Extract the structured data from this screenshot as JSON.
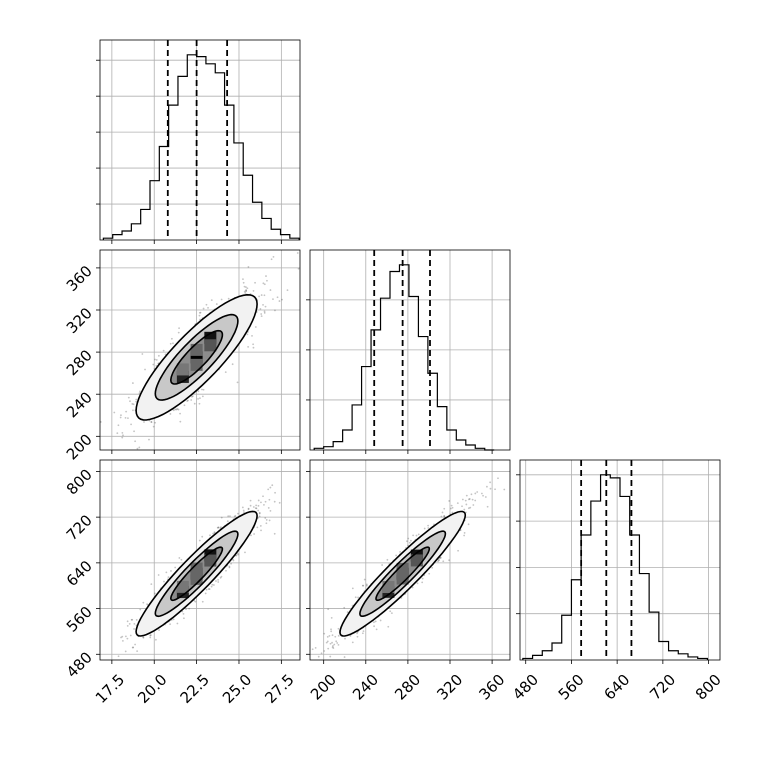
{
  "chart_data": {
    "type": "corner",
    "grid": true,
    "ticks": {
      "p1": [
        "17.5",
        "20.0",
        "22.5",
        "25.0",
        "27.5"
      ],
      "p2": [
        "200",
        "240",
        "280",
        "320",
        "360"
      ],
      "p3": [
        "480",
        "560",
        "640",
        "720",
        "800"
      ]
    },
    "parameters": [
      {
        "id": "p1",
        "range": [
          16.8,
          28.6
        ],
        "quantiles": [
          20.8,
          22.5,
          24.3
        ]
      },
      {
        "id": "p2",
        "range": [
          187,
          377
        ],
        "quantiles": [
          248,
          275,
          301
        ]
      },
      {
        "id": "p3",
        "range": [
          470,
          820
        ],
        "quantiles": [
          577,
          621,
          665
        ]
      }
    ],
    "histograms": [
      {
        "param": "p1",
        "bin_start": 17.0,
        "bin_width": 0.55,
        "counts": [
          1,
          3,
          5,
          9,
          17,
          33,
          52,
          75,
          91,
          103,
          102,
          98,
          93,
          75,
          54,
          36,
          21,
          12,
          6,
          3,
          1
        ]
      },
      {
        "param": "p2",
        "bin_start": 191,
        "bin_width": 9.0,
        "counts": [
          1,
          2,
          5,
          12,
          27,
          50,
          72,
          91,
          107,
          111,
          92,
          68,
          46,
          26,
          12,
          6,
          3,
          1,
          0
        ]
      },
      {
        "param": "p3",
        "bin_start": 475,
        "bin_width": 17,
        "counts": [
          1,
          3,
          6,
          11,
          29,
          52,
          81,
          103,
          120,
          118,
          106,
          81,
          56,
          31,
          12,
          6,
          4,
          2,
          1
        ]
      }
    ],
    "joint": [
      {
        "x": "p1",
        "y": "p2",
        "mean": [
          22.5,
          275
        ],
        "sd": [
          1.8,
          30
        ],
        "rho": 0.85
      },
      {
        "x": "p1",
        "y": "p3",
        "mean": [
          22.5,
          621
        ],
        "sd": [
          1.8,
          55
        ],
        "rho": 0.93
      },
      {
        "x": "p2",
        "y": "p3",
        "mean": [
          275,
          621
        ],
        "sd": [
          30,
          55
        ],
        "rho": 0.94
      }
    ]
  }
}
